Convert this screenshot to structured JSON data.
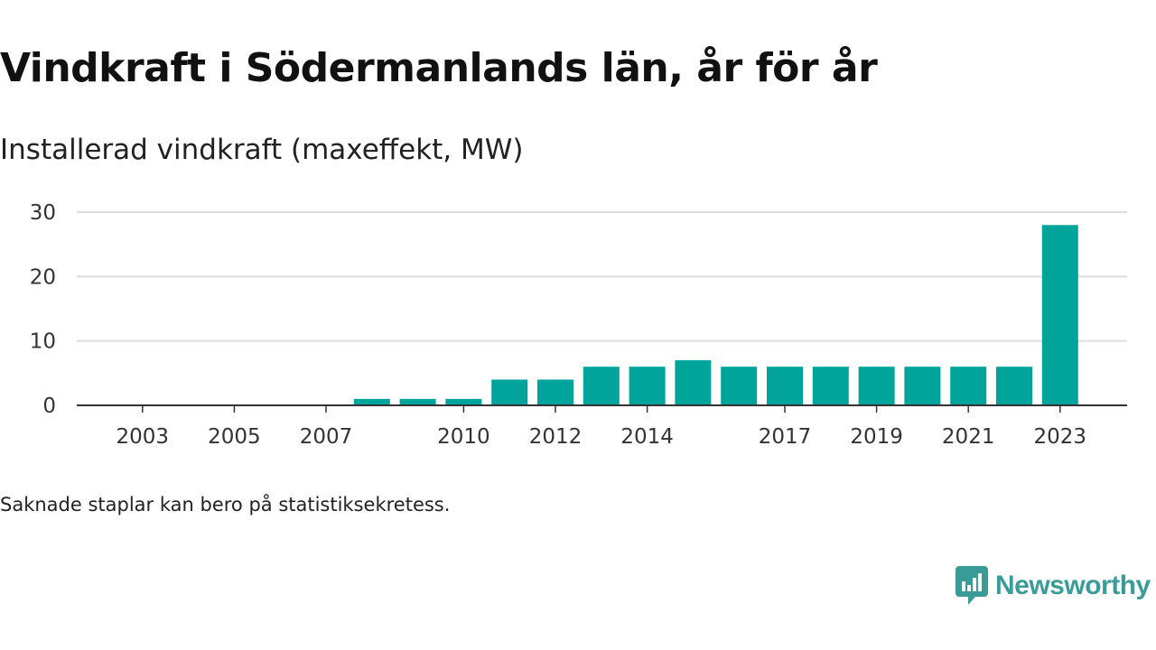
{
  "title": "Vindkraft i Södermanlands län, år för år",
  "subtitle": "Installerad vindkraft (maxeffekt, MW)",
  "footnote": "Saknade staplar kan bero på statistiksekretess.",
  "brand": {
    "name": "Newsworthy",
    "icon": "newsworthy-logo-icon"
  },
  "colors": {
    "bar": "#00a49a",
    "grid": "#dddddd",
    "axis": "#333333",
    "brand": "#3a9c98"
  },
  "chart_data": {
    "type": "bar",
    "categories": [
      "2002",
      "2003",
      "2004",
      "2005",
      "2006",
      "2007",
      "2008",
      "2009",
      "2010",
      "2011",
      "2012",
      "2013",
      "2014",
      "2015",
      "2016",
      "2017",
      "2018",
      "2019",
      "2020",
      "2021",
      "2022",
      "2023"
    ],
    "values": [
      0,
      0,
      0,
      0,
      0,
      0,
      1,
      1,
      1,
      4,
      4,
      6,
      6,
      7,
      6,
      6,
      6,
      6,
      6,
      6,
      6,
      28
    ],
    "x_tick_labels": [
      "2003",
      "2005",
      "2007",
      "2010",
      "2012",
      "2014",
      "2017",
      "2019",
      "2021",
      "2023"
    ],
    "y_ticks": [
      0,
      10,
      20,
      30
    ],
    "ylim": [
      0,
      30
    ],
    "grid": true,
    "title": "Vindkraft i Södermanlands län, år för år",
    "ylabel": "Installerad vindkraft (maxeffekt, MW)",
    "xlabel": ""
  }
}
